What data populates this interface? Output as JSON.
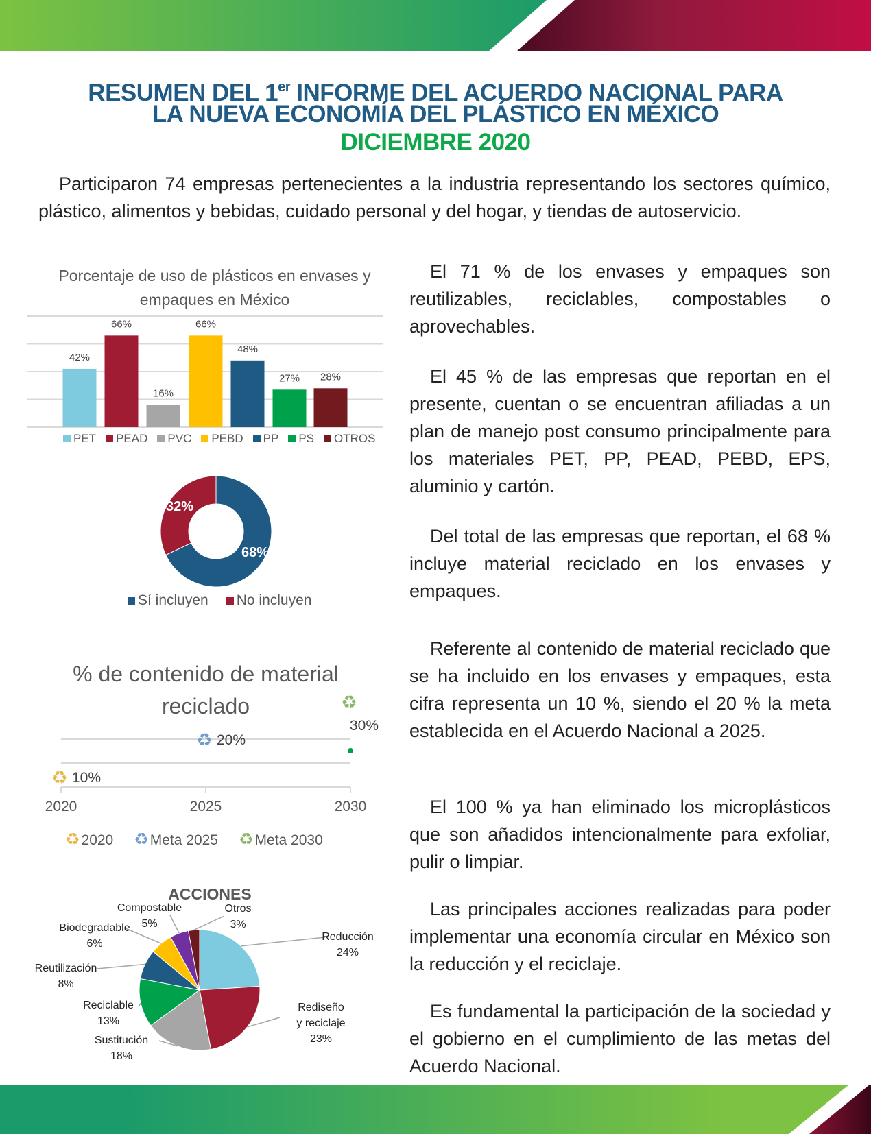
{
  "header": {
    "title_line1_pre": "RESUMEN DEL 1",
    "title_sup": "er",
    "title_line1_post": " INFORME DEL ACUERDO NACIONAL PARA",
    "title_line2": "LA NUEVA ECONOMÍA DEL PLÁSTICO EN MÉXICO",
    "title_line3": "DICIEMBRE 2020",
    "colors": {
      "title": "#1f5b85",
      "date": "#0ea84a"
    }
  },
  "intro": "Participaron 74 empresas pertenecientes a la industria representando los sectores químico, plástico, alimentos y bebidas, cuidado personal y del hogar, y tiendas de autoservicio.",
  "paragraphs": [
    "El 71 % de los envases y empaques son reutilizables, reciclables, compostables o aprovechables.",
    "El 45 % de las empresas que reportan en el presente, cuentan o se encuentran afiliadas a un plan de manejo post consumo principalmente para los materiales PET, PP, PEAD, PEBD, EPS, aluminio y cartón.",
    "Del total de las empresas que reportan, el 68 % incluye material reciclado en los envases y empaques.",
    "Referente al contenido de material reciclado que se ha incluido en los envases y empaques, esta cifra representa un 10 %, siendo el 20 % la meta establecida en el Acuerdo Nacional a 2025.",
    "El 100 % ya han eliminado los microplásticos que son añadidos intencionalmente para exfoliar, pulir o limpiar.",
    "Las principales acciones realizadas para poder implementar una economía circular en México son la reducción y el reciclaje.",
    "Es fundamental la participación de la sociedad y el gobierno en el cumplimiento de las metas del Acuerdo Nacional."
  ],
  "chart_data": [
    {
      "type": "bar",
      "title": "Porcentaje de uso de plásticos en envases y empaques en México",
      "categories": [
        "PET",
        "PEAD",
        "PVC",
        "PEBD",
        "PP",
        "PS",
        "OTROS"
      ],
      "values": [
        42,
        66,
        16,
        66,
        48,
        27,
        28
      ],
      "labels": [
        "42%",
        "66%",
        "16%",
        "66%",
        "48%",
        "27%",
        "28%"
      ],
      "colors": [
        "#7ecbe0",
        "#a01c33",
        "#a6a6a6",
        "#ffc000",
        "#1f5a85",
        "#00a14b",
        "#731a1f"
      ],
      "ylim": [
        0,
        80
      ],
      "grid": true,
      "legend": "bottom"
    },
    {
      "type": "pie",
      "variant": "donut",
      "categories": [
        "Sí incluyen",
        "No incluyen"
      ],
      "values": [
        68,
        32
      ],
      "labels": [
        "68%",
        "32%"
      ],
      "colors": [
        "#1f5a85",
        "#a01c33"
      ],
      "legend": "bottom"
    },
    {
      "type": "scatter",
      "title": "% de contenido de material reciclado",
      "x": [
        2020,
        2025,
        2030
      ],
      "values": [
        10,
        20,
        30
      ],
      "labels": [
        "10%",
        "20%",
        "30%"
      ],
      "series": [
        {
          "name": "2020",
          "x": 2020,
          "y": 10,
          "color": "#e6b84a"
        },
        {
          "name": "Meta 2025",
          "x": 2025,
          "y": 20,
          "color": "#6f9ccb"
        },
        {
          "name": "Meta 2030",
          "x": 2030,
          "y": 30,
          "color": "#8ab66a"
        }
      ],
      "xticks": [
        "2020",
        "2025",
        "2030"
      ],
      "ylim": [
        0,
        35
      ],
      "grid": true,
      "legend": "bottom",
      "marker_icon": "recycle-icon"
    },
    {
      "type": "pie",
      "title": "ACCIONES",
      "categories": [
        "Reducción",
        "Rediseño y reciclaje",
        "Sustitución",
        "Reciclable",
        "Reutilización",
        "Biodegradable",
        "Compostable",
        "Otros"
      ],
      "values": [
        24,
        23,
        18,
        13,
        8,
        6,
        5,
        3
      ],
      "labels": [
        "24%",
        "23%",
        "18%",
        "13%",
        "8%",
        "6%",
        "5%",
        "3%"
      ],
      "colors": [
        "#7ecbe0",
        "#a01c33",
        "#a6a6a6",
        "#00a14b",
        "#1f5a85",
        "#ffc000",
        "#7030a0",
        "#6d1a1f"
      ]
    }
  ]
}
